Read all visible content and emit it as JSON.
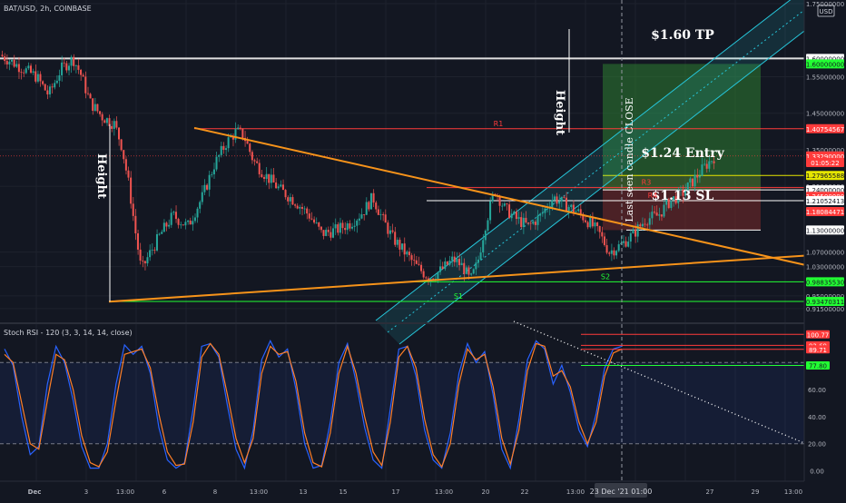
{
  "header": {
    "symbol": "BAT/USD, 2h, COINBASE",
    "currency": "USD"
  },
  "colors": {
    "background": "#131722",
    "grid": "#1e222d",
    "up": "#26a69a",
    "down": "#ef5350",
    "trend": "#f7931a",
    "channel": "#26c6da",
    "rsi_k": "#2962ff",
    "rsi_d": "#ff7f27",
    "support": "#22ff33",
    "resistance": "#ff3b3b",
    "white": "#ffffff"
  },
  "chart_data": [
    {
      "type": "candlestick",
      "title": "BAT/USD, 2h, COINBASE",
      "ylim": [
        0.88,
        1.76
      ],
      "y_ticks": [
        "1.75000000",
        "1.55000000",
        "1.45000000",
        "1.35000000",
        "1.25000000",
        "1.07000000",
        "1.03000000",
        "0.95000000",
        "0.91500000"
      ],
      "x_ticks": [
        "Dec",
        "3",
        "13:00",
        "6",
        "8",
        "13:00",
        "13",
        "15",
        "17",
        "13:00",
        "20",
        "22",
        "13:00",
        "27",
        "29",
        "13:00"
      ],
      "x_cursor_label": "23 Dec '21 01:00",
      "price_labels": [
        {
          "text": "1.60000000",
          "price": 1.6,
          "kind": "white"
        },
        {
          "text": "1.60000000",
          "price": 1.585,
          "kind": "green"
        },
        {
          "text": "1.40754567",
          "price": 1.4075,
          "kind": "red"
        },
        {
          "text": "1.33290000",
          "price": 1.333,
          "kind": "red"
        },
        {
          "text": "01:05:22",
          "price": 1.315,
          "kind": "red"
        },
        {
          "text": "1.27965588",
          "price": 1.2797,
          "kind": "yellow"
        },
        {
          "text": "1.24000000",
          "price": 1.24,
          "kind": "white"
        },
        {
          "text": "1.24500000",
          "price": 1.2225,
          "kind": "red"
        },
        {
          "text": "1.21052413",
          "price": 1.2105,
          "kind": "white"
        },
        {
          "text": "1.18084471",
          "price": 1.1808,
          "kind": "red"
        },
        {
          "text": "1.13000000",
          "price": 1.13,
          "kind": "white"
        },
        {
          "text": "0.98835530",
          "price": 0.9884,
          "kind": "green"
        },
        {
          "text": "0.93470311",
          "price": 0.9347,
          "kind": "green"
        }
      ],
      "levels": [
        {
          "name": "R1",
          "price": 1.4075
        },
        {
          "name": "R3",
          "price": 1.2465
        },
        {
          "name": "R4",
          "price": 1.2105
        },
        {
          "name": "S2",
          "price": 0.9884
        },
        {
          "name": "S1",
          "price": 0.9347
        }
      ],
      "annotations": {
        "tp": "$1.60 TP",
        "entry": "$1.24 Entry",
        "sl": "$1.13 SL",
        "height_left": "Height",
        "height_right": "Height",
        "last_candle": "Last seen candle CLOSE"
      },
      "close_path": [
        [
          0,
          1.61
        ],
        [
          1.5,
          1.55
        ],
        [
          2,
          1.5
        ],
        [
          2.5,
          1.57
        ],
        [
          3,
          1.6
        ],
        [
          3.3,
          1.56
        ],
        [
          3.7,
          1.48
        ],
        [
          4.2,
          1.44
        ],
        [
          4.7,
          1.42
        ],
        [
          5.0,
          1.36
        ],
        [
          5.3,
          1.25
        ],
        [
          5.55,
          1.13
        ],
        [
          5.8,
          1.02
        ],
        [
          6.1,
          1.06
        ],
        [
          6.6,
          1.12
        ],
        [
          7.1,
          1.17
        ],
        [
          7.7,
          1.14
        ],
        [
          8.3,
          1.22
        ],
        [
          8.8,
          1.31
        ],
        [
          9.3,
          1.37
        ],
        [
          9.7,
          1.4
        ],
        [
          10.0,
          1.39
        ],
        [
          10.4,
          1.32
        ],
        [
          10.9,
          1.28
        ],
        [
          11.5,
          1.24
        ],
        [
          12.1,
          1.21
        ],
        [
          12.7,
          1.17
        ],
        [
          13.2,
          1.12
        ],
        [
          13.8,
          1.13
        ],
        [
          14.4,
          1.15
        ],
        [
          14.9,
          1.18
        ],
        [
          15.3,
          1.22
        ],
        [
          15.7,
          1.16
        ],
        [
          16.1,
          1.11
        ],
        [
          16.6,
          1.07
        ],
        [
          17.1,
          1.03
        ],
        [
          17.6,
          1.0
        ],
        [
          18.1,
          1.02
        ],
        [
          18.6,
          1.05
        ],
        [
          19.0,
          1.03
        ],
        [
          19.3,
          0.99
        ],
        [
          19.6,
          1.04
        ],
        [
          19.9,
          1.14
        ],
        [
          20.3,
          1.24
        ],
        [
          20.7,
          1.19
        ],
        [
          21.2,
          1.16
        ],
        [
          21.7,
          1.14
        ],
        [
          22.2,
          1.17
        ],
        [
          22.7,
          1.22
        ],
        [
          23.2,
          1.2
        ],
        [
          23.7,
          1.18
        ],
        [
          24.2,
          1.15
        ],
        [
          24.6,
          1.12
        ],
        [
          25.0,
          1.07
        ],
        [
          25.5,
          1.09
        ],
        [
          26.0,
          1.12
        ],
        [
          26.5,
          1.16
        ],
        [
          27.0,
          1.17
        ],
        [
          27.5,
          1.21
        ],
        [
          28.0,
          1.23
        ],
        [
          28.5,
          1.27
        ],
        [
          29.0,
          1.31
        ],
        [
          29.3,
          1.33
        ]
      ]
    },
    {
      "type": "line",
      "title": "Stoch RSI - 120 (3, 3, 14, 14, close)",
      "ylim": [
        -5,
        105
      ],
      "y_ticks": [
        "60.00",
        "40.00",
        "20.00",
        "0.00"
      ],
      "value_labels": [
        {
          "text": "100.77",
          "value": 100.77
        },
        {
          "text": "92.69",
          "value": 92.69
        },
        {
          "text": "89.71",
          "value": 89.71
        },
        {
          "text": "77.80",
          "value": 77.8
        }
      ],
      "band": [
        20,
        80
      ],
      "series": [
        {
          "values": [
            90,
            78,
            40,
            12,
            18,
            64,
            92,
            80,
            52,
            18,
            2,
            2,
            20,
            64,
            93,
            86,
            92,
            72,
            32,
            8,
            2,
            6,
            46,
            92,
            94,
            84,
            48,
            16,
            2,
            30,
            82,
            96,
            84,
            90,
            60,
            20,
            2,
            4,
            36,
            80,
            94,
            66,
            32,
            8,
            2,
            46,
            90,
            92,
            70,
            30,
            8,
            2,
            28,
            72,
            94,
            80,
            88,
            56,
            16,
            2,
            38,
            82,
            96,
            90,
            64,
            78,
            58,
            30,
            18,
            42,
            76,
            90,
            92
          ]
        },
        {
          "values": [
            86,
            80,
            50,
            20,
            16,
            52,
            86,
            82,
            60,
            26,
            6,
            3,
            14,
            52,
            86,
            88,
            90,
            76,
            42,
            14,
            4,
            5,
            36,
            84,
            94,
            86,
            56,
            24,
            6,
            24,
            72,
            92,
            86,
            88,
            66,
            28,
            6,
            3,
            28,
            72,
            92,
            72,
            40,
            14,
            4,
            36,
            84,
            92,
            76,
            38,
            12,
            3,
            20,
            64,
            90,
            82,
            86,
            62,
            24,
            5,
            30,
            74,
            94,
            92,
            70,
            74,
            62,
            36,
            20,
            36,
            70,
            87,
            90
          ]
        }
      ]
    }
  ]
}
